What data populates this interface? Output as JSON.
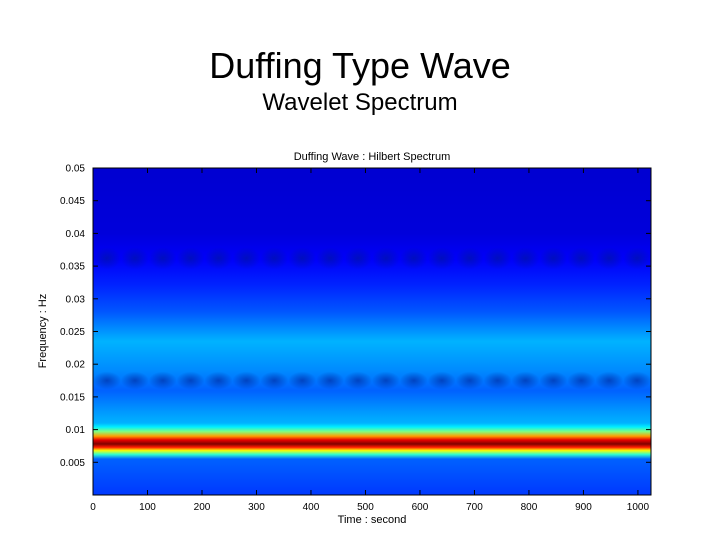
{
  "slide": {
    "title": "Duffing Type Wave",
    "subtitle": "Wavelet Spectrum"
  },
  "chart_data": {
    "type": "heatmap",
    "title": "Duffing Wave :  Hilbert Spectrum",
    "xlabel": "Time : second",
    "ylabel": "Frequency : Hz",
    "xlim": [
      0,
      1024
    ],
    "ylim": [
      0,
      0.05
    ],
    "x_ticks": [
      0,
      100,
      200,
      300,
      400,
      500,
      600,
      700,
      800,
      900,
      1000
    ],
    "y_ticks": [
      0.005,
      0.01,
      0.015,
      0.02,
      0.025,
      0.03,
      0.035,
      0.04,
      0.045,
      0.05
    ],
    "y_tick_labels": [
      "0.005",
      "0.01",
      "0.015",
      "0.02",
      "0.025",
      "0.03",
      "0.035",
      "0.04",
      "0.045",
      "0.05"
    ],
    "colormap": "jet",
    "intensity_profile": [
      {
        "frequency": 0.0,
        "intensity": 0.18
      },
      {
        "frequency": 0.0055,
        "intensity": 0.22
      },
      {
        "frequency": 0.0062,
        "intensity": 0.42
      },
      {
        "frequency": 0.0068,
        "intensity": 0.62
      },
      {
        "frequency": 0.0073,
        "intensity": 0.85
      },
      {
        "frequency": 0.0078,
        "intensity": 1.0
      },
      {
        "frequency": 0.0084,
        "intensity": 0.9
      },
      {
        "frequency": 0.009,
        "intensity": 0.72
      },
      {
        "frequency": 0.0097,
        "intensity": 0.5
      },
      {
        "frequency": 0.0104,
        "intensity": 0.36
      },
      {
        "frequency": 0.011,
        "intensity": 0.3
      },
      {
        "frequency": 0.013,
        "intensity": 0.27
      },
      {
        "frequency": 0.016,
        "intensity": 0.22
      },
      {
        "frequency": 0.019,
        "intensity": 0.26
      },
      {
        "frequency": 0.0235,
        "intensity": 0.3
      },
      {
        "frequency": 0.028,
        "intensity": 0.21
      },
      {
        "frequency": 0.032,
        "intensity": 0.16
      },
      {
        "frequency": 0.036,
        "intensity": 0.12
      },
      {
        "frequency": 0.04,
        "intensity": 0.09
      },
      {
        "frequency": 0.05,
        "intensity": 0.08
      }
    ],
    "modulation_rows": [
      0.0362,
      0.0175
    ],
    "modulation_period_seconds": 51.2
  }
}
